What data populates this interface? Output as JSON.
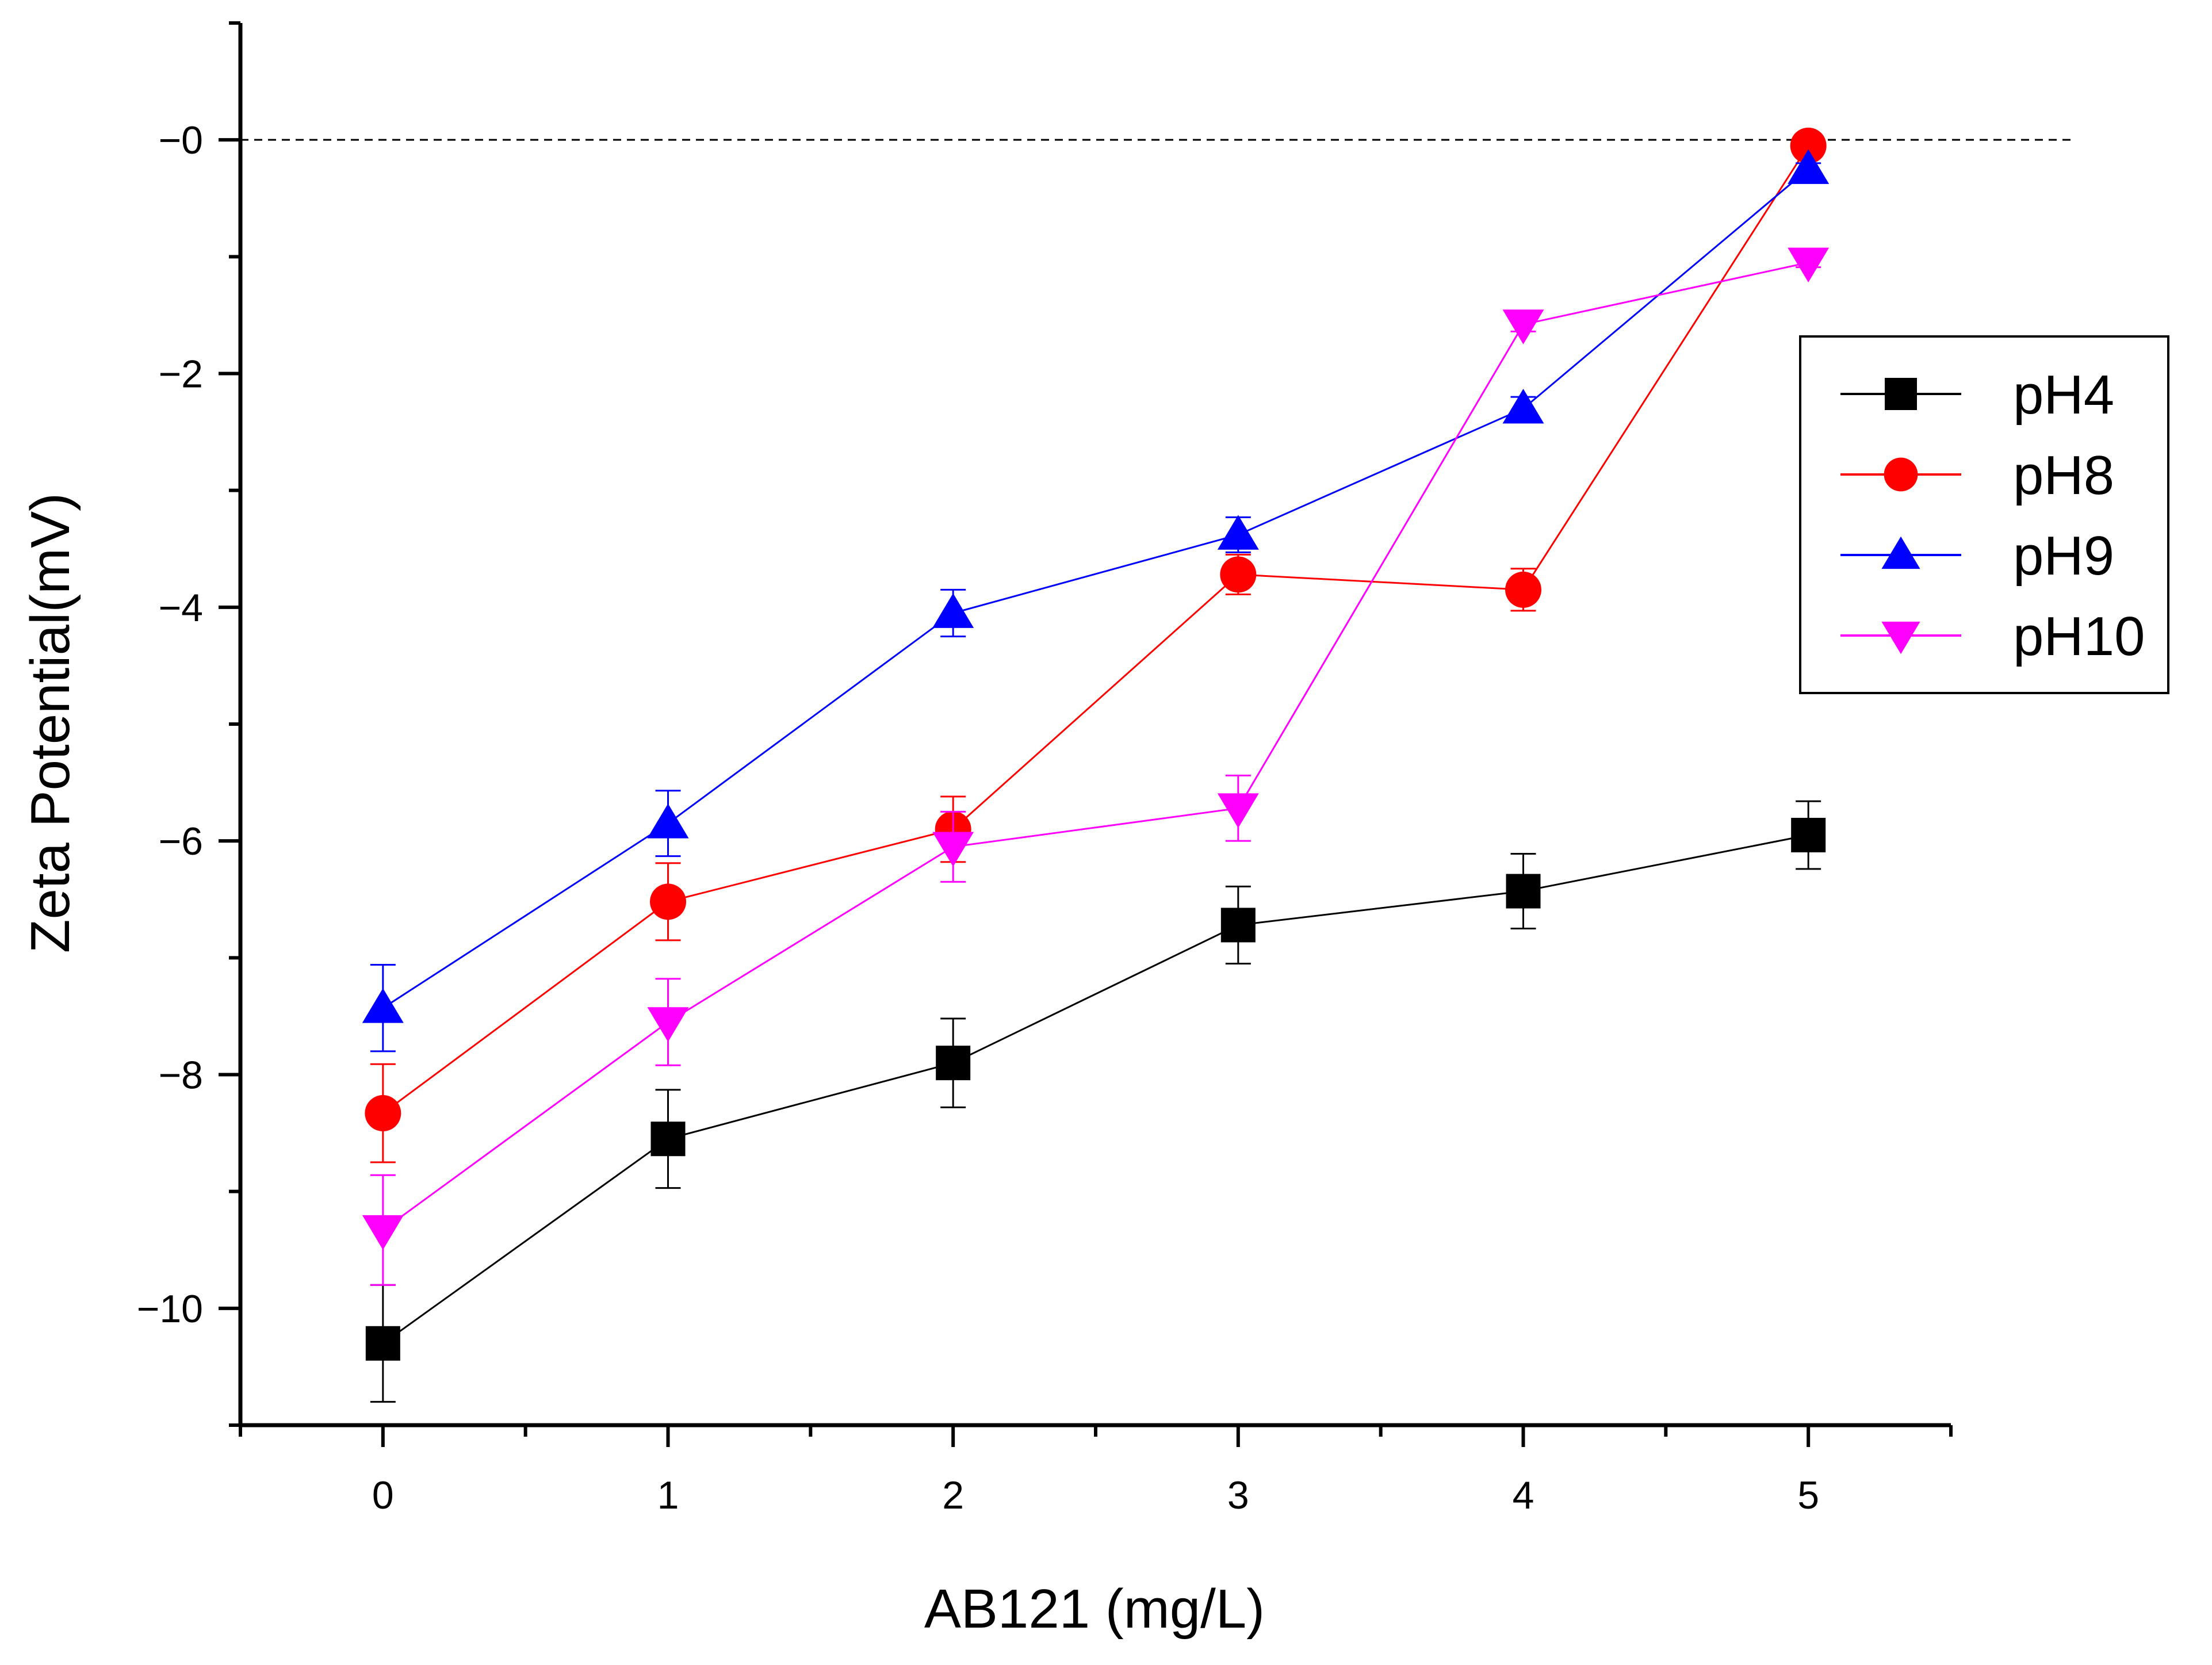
{
  "chart_data": {
    "type": "line",
    "title": "",
    "xlabel": "AB121 (mg/L)",
    "ylabel": "Zeta Potential(mV)",
    "xlim": [
      -0.5,
      5.5
    ],
    "ylim": [
      -11,
      1
    ],
    "x_ticks": [
      0,
      1,
      2,
      3,
      4,
      5
    ],
    "x_tick_labels": [
      "0",
      "1",
      "2",
      "3",
      "4",
      "5"
    ],
    "y_ticks": [
      0,
      -2,
      -4,
      -6,
      -8,
      -10
    ],
    "y_tick_labels": [
      "−0",
      "−2",
      "−4",
      "−6",
      "−8",
      "−10"
    ],
    "reference_line": 0,
    "grid": false,
    "legend_position": "right",
    "x": [
      0,
      1,
      2,
      3,
      4,
      5
    ],
    "series": [
      {
        "name": "pH4",
        "marker": "square",
        "color": "#000000",
        "values": [
          -10.3,
          -8.55,
          -7.9,
          -6.72,
          -6.43,
          -5.95
        ],
        "errors": [
          0.5,
          0.42,
          0.38,
          0.33,
          0.32,
          0.29
        ]
      },
      {
        "name": "pH8",
        "marker": "circle",
        "color": "#ff0000",
        "values": [
          -8.33,
          -6.52,
          -5.9,
          -3.72,
          -3.85,
          -0.05
        ],
        "errors": [
          0.42,
          0.33,
          0.28,
          0.17,
          0.18,
          0.05
        ]
      },
      {
        "name": "pH9",
        "marker": "triangle-up",
        "color": "#0000ff",
        "values": [
          -7.43,
          -5.85,
          -4.05,
          -3.38,
          -2.3,
          -0.25
        ],
        "errors": [
          0.37,
          0.28,
          0.2,
          0.15,
          0.1,
          0.05
        ]
      },
      {
        "name": "pH10",
        "marker": "triangle-down",
        "color": "#ff00ff",
        "values": [
          -9.33,
          -7.55,
          -6.05,
          -5.72,
          -1.58,
          -1.05
        ],
        "errors": [
          0.47,
          0.37,
          0.3,
          0.28,
          0.06,
          0.04
        ]
      }
    ]
  }
}
